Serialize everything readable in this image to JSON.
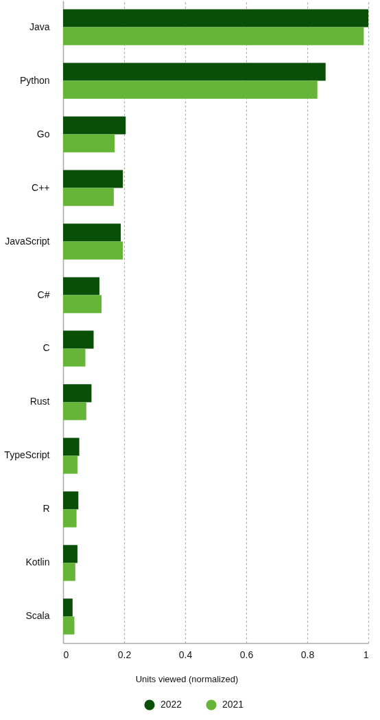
{
  "chart_data": {
    "type": "bar",
    "orientation": "horizontal",
    "xlabel": "Units viewed (normalized)",
    "categories": [
      "Java",
      "Python",
      "Go",
      "C++",
      "JavaScript",
      "C#",
      "C",
      "Rust",
      "TypeScript",
      "R",
      "Kotlin",
      "Scala"
    ],
    "series": [
      {
        "name": "2022",
        "color": "#0a4f07",
        "values": [
          1.0,
          0.86,
          0.205,
          0.196,
          0.189,
          0.119,
          0.1,
          0.093,
          0.053,
          0.05,
          0.047,
          0.031
        ]
      },
      {
        "name": "2021",
        "color": "#66b538",
        "values": [
          0.985,
          0.833,
          0.169,
          0.166,
          0.196,
          0.126,
          0.073,
          0.076,
          0.047,
          0.044,
          0.04,
          0.037
        ]
      }
    ],
    "xlim": [
      0,
      1
    ],
    "xticks": [
      0,
      0.2,
      0.4,
      0.6,
      0.8,
      1
    ],
    "grid": "x",
    "legend": "bottom"
  }
}
